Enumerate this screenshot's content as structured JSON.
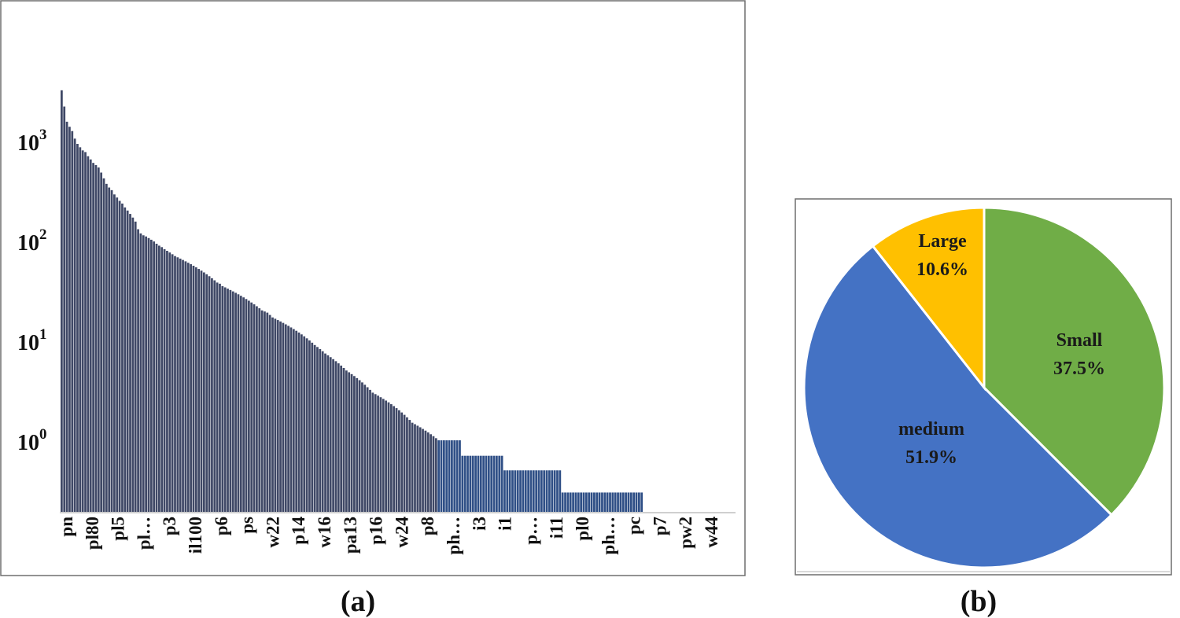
{
  "chart_data": [
    {
      "type": "bar",
      "panel_label": "(a)",
      "yscale": "log",
      "ytick_labels": [
        {
          "base": "10",
          "exp": "0",
          "value": 1
        },
        {
          "base": "10",
          "exp": "1",
          "value": 10
        },
        {
          "base": "10",
          "exp": "2",
          "value": 100
        },
        {
          "base": "10",
          "exp": "3",
          "value": 1000
        }
      ],
      "bar_color": "#3f4866",
      "bar_color_light": "#4a5d8c",
      "bar_color_sparse": "#2f4f86",
      "visible_category_labels": [
        "pn",
        "pl80",
        "pl5",
        "pl…",
        "p3",
        "il100",
        "p6",
        "ps",
        "w22",
        "p14",
        "w16",
        "pa13",
        "p16",
        "w24",
        "p8",
        "ph…",
        "i3",
        "i1",
        "p…",
        "i11",
        "pl0",
        "ph…",
        "pc",
        "p7",
        "pw2",
        "w44"
      ],
      "values": [
        3200,
        2200,
        1550,
        1380,
        1250,
        1050,
        930,
        860,
        800,
        770,
        700,
        650,
        600,
        570,
        540,
        480,
        420,
        370,
        340,
        320,
        290,
        270,
        250,
        235,
        215,
        200,
        185,
        170,
        155,
        130,
        118,
        113,
        110,
        106,
        102,
        98,
        93,
        89,
        86,
        82,
        79,
        76,
        73,
        70,
        68,
        66,
        64,
        62,
        60,
        58,
        56,
        54,
        52,
        50,
        48,
        46,
        44,
        42,
        40,
        38,
        37,
        35,
        34,
        33,
        32,
        31,
        30,
        29,
        28,
        27,
        26,
        25,
        24,
        23,
        22,
        21,
        20,
        19.5,
        19,
        18,
        17,
        16.5,
        16,
        15.5,
        15,
        14.5,
        14,
        13.5,
        13,
        12.5,
        12,
        11.5,
        11,
        10.5,
        10,
        9.5,
        9,
        8.6,
        8.2,
        7.8,
        7.4,
        7.1,
        6.8,
        6.5,
        6.2,
        5.9,
        5.6,
        5.3,
        5.0,
        4.8,
        4.6,
        4.4,
        4.2,
        4.0,
        3.8,
        3.6,
        3.4,
        3.2,
        3.0,
        2.9,
        2.8,
        2.7,
        2.6,
        2.5,
        2.4,
        2.3,
        2.2,
        2.1,
        2.0,
        1.9,
        1.8,
        1.7,
        1.6,
        1.5,
        1.45,
        1.4,
        1.35,
        1.3,
        1.25,
        1.2,
        1.15,
        1.1,
        1.05,
        1.0,
        1,
        1,
        1,
        1,
        1,
        1,
        1,
        1,
        0.7,
        0.7,
        0.7,
        0.7,
        0.7,
        0.7,
        0.7,
        0.7,
        0.7,
        0.7,
        0.7,
        0.7,
        0.7,
        0.7,
        0.7,
        0.7,
        0.5,
        0.5,
        0.5,
        0.5,
        0.5,
        0.5,
        0.5,
        0.5,
        0.5,
        0.5,
        0.5,
        0.5,
        0.5,
        0.5,
        0.5,
        0.5,
        0.5,
        0.5,
        0.5,
        0.5,
        0.5,
        0.5,
        0.3,
        0.3,
        0.3,
        0.3,
        0.3,
        0.3,
        0.3,
        0.3,
        0.3,
        0.3,
        0.3,
        0.3,
        0.3,
        0.3,
        0.3,
        0.3,
        0.3,
        0.3,
        0.3,
        0.3,
        0.3,
        0.3,
        0.3,
        0.3,
        0.3,
        0.3,
        0.3,
        0.3,
        0.3,
        0.3,
        0.3
      ],
      "ylim": [
        0.1,
        5000
      ],
      "total_categories": 256
    },
    {
      "type": "pie",
      "panel_label": "(b)",
      "slices": [
        {
          "label": "Small",
          "value": 37.5,
          "display": "37.5%",
          "color": "#70ad47"
        },
        {
          "label": "medium",
          "value": 51.9,
          "display": "51.9%",
          "color": "#4472c4"
        },
        {
          "label": "Large",
          "value": 10.6,
          "display": "10.6%",
          "color": "#ffc000"
        }
      ],
      "start_angle_deg": 0,
      "direction": "clockwise"
    }
  ]
}
